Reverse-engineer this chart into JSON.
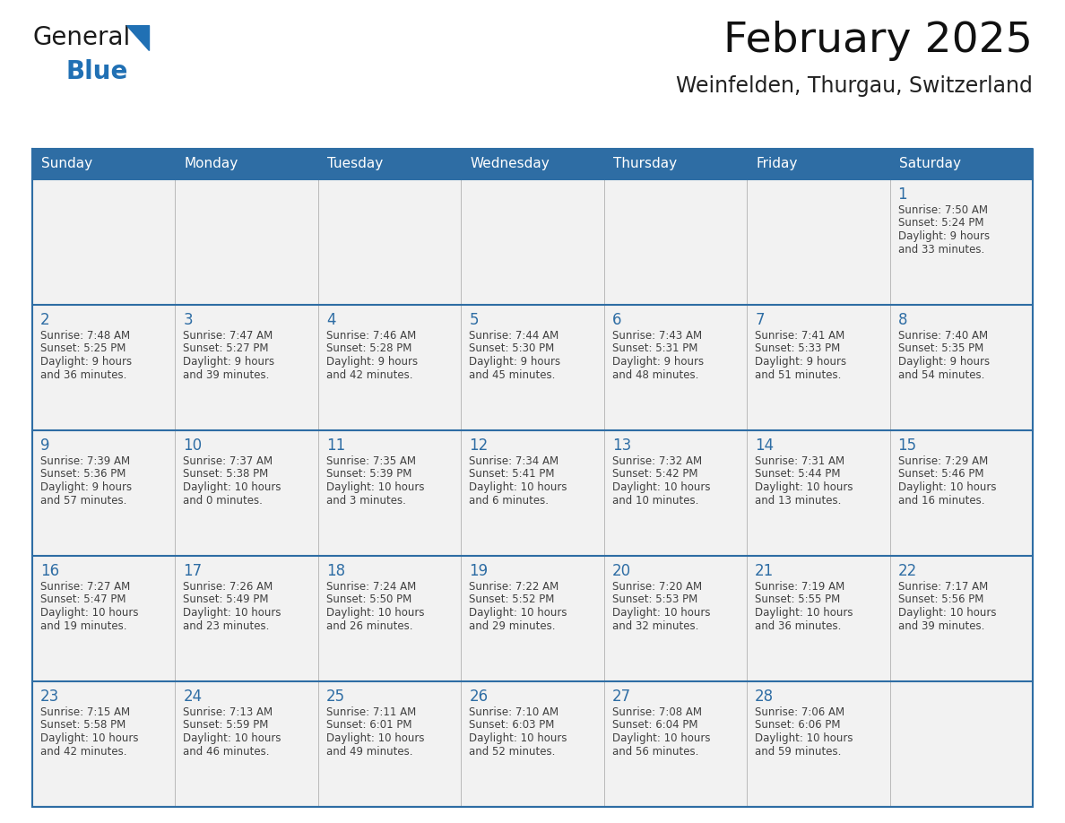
{
  "title": "February 2025",
  "subtitle": "Weinfelden, Thurgau, Switzerland",
  "days_of_week": [
    "Sunday",
    "Monday",
    "Tuesday",
    "Wednesday",
    "Thursday",
    "Friday",
    "Saturday"
  ],
  "header_bg": "#2E6DA4",
  "header_text": "#FFFFFF",
  "cell_bg": "#F2F2F2",
  "day_number_color": "#2E6DA4",
  "text_color": "#404040",
  "line_color": "#2E6DA4",
  "calendar_data": [
    [
      null,
      null,
      null,
      null,
      null,
      null,
      {
        "day": 1,
        "sunrise": "7:50 AM",
        "sunset": "5:24 PM",
        "daylight": "9 hours",
        "daylight2": "and 33 minutes."
      }
    ],
    [
      {
        "day": 2,
        "sunrise": "7:48 AM",
        "sunset": "5:25 PM",
        "daylight": "9 hours",
        "daylight2": "and 36 minutes."
      },
      {
        "day": 3,
        "sunrise": "7:47 AM",
        "sunset": "5:27 PM",
        "daylight": "9 hours",
        "daylight2": "and 39 minutes."
      },
      {
        "day": 4,
        "sunrise": "7:46 AM",
        "sunset": "5:28 PM",
        "daylight": "9 hours",
        "daylight2": "and 42 minutes."
      },
      {
        "day": 5,
        "sunrise": "7:44 AM",
        "sunset": "5:30 PM",
        "daylight": "9 hours",
        "daylight2": "and 45 minutes."
      },
      {
        "day": 6,
        "sunrise": "7:43 AM",
        "sunset": "5:31 PM",
        "daylight": "9 hours",
        "daylight2": "and 48 minutes."
      },
      {
        "day": 7,
        "sunrise": "7:41 AM",
        "sunset": "5:33 PM",
        "daylight": "9 hours",
        "daylight2": "and 51 minutes."
      },
      {
        "day": 8,
        "sunrise": "7:40 AM",
        "sunset": "5:35 PM",
        "daylight": "9 hours",
        "daylight2": "and 54 minutes."
      }
    ],
    [
      {
        "day": 9,
        "sunrise": "7:39 AM",
        "sunset": "5:36 PM",
        "daylight": "9 hours",
        "daylight2": "and 57 minutes."
      },
      {
        "day": 10,
        "sunrise": "7:37 AM",
        "sunset": "5:38 PM",
        "daylight": "10 hours",
        "daylight2": "and 0 minutes."
      },
      {
        "day": 11,
        "sunrise": "7:35 AM",
        "sunset": "5:39 PM",
        "daylight": "10 hours",
        "daylight2": "and 3 minutes."
      },
      {
        "day": 12,
        "sunrise": "7:34 AM",
        "sunset": "5:41 PM",
        "daylight": "10 hours",
        "daylight2": "and 6 minutes."
      },
      {
        "day": 13,
        "sunrise": "7:32 AM",
        "sunset": "5:42 PM",
        "daylight": "10 hours",
        "daylight2": "and 10 minutes."
      },
      {
        "day": 14,
        "sunrise": "7:31 AM",
        "sunset": "5:44 PM",
        "daylight": "10 hours",
        "daylight2": "and 13 minutes."
      },
      {
        "day": 15,
        "sunrise": "7:29 AM",
        "sunset": "5:46 PM",
        "daylight": "10 hours",
        "daylight2": "and 16 minutes."
      }
    ],
    [
      {
        "day": 16,
        "sunrise": "7:27 AM",
        "sunset": "5:47 PM",
        "daylight": "10 hours",
        "daylight2": "and 19 minutes."
      },
      {
        "day": 17,
        "sunrise": "7:26 AM",
        "sunset": "5:49 PM",
        "daylight": "10 hours",
        "daylight2": "and 23 minutes."
      },
      {
        "day": 18,
        "sunrise": "7:24 AM",
        "sunset": "5:50 PM",
        "daylight": "10 hours",
        "daylight2": "and 26 minutes."
      },
      {
        "day": 19,
        "sunrise": "7:22 AM",
        "sunset": "5:52 PM",
        "daylight": "10 hours",
        "daylight2": "and 29 minutes."
      },
      {
        "day": 20,
        "sunrise": "7:20 AM",
        "sunset": "5:53 PM",
        "daylight": "10 hours",
        "daylight2": "and 32 minutes."
      },
      {
        "day": 21,
        "sunrise": "7:19 AM",
        "sunset": "5:55 PM",
        "daylight": "10 hours",
        "daylight2": "and 36 minutes."
      },
      {
        "day": 22,
        "sunrise": "7:17 AM",
        "sunset": "5:56 PM",
        "daylight": "10 hours",
        "daylight2": "and 39 minutes."
      }
    ],
    [
      {
        "day": 23,
        "sunrise": "7:15 AM",
        "sunset": "5:58 PM",
        "daylight": "10 hours",
        "daylight2": "and 42 minutes."
      },
      {
        "day": 24,
        "sunrise": "7:13 AM",
        "sunset": "5:59 PM",
        "daylight": "10 hours",
        "daylight2": "and 46 minutes."
      },
      {
        "day": 25,
        "sunrise": "7:11 AM",
        "sunset": "6:01 PM",
        "daylight": "10 hours",
        "daylight2": "and 49 minutes."
      },
      {
        "day": 26,
        "sunrise": "7:10 AM",
        "sunset": "6:03 PM",
        "daylight": "10 hours",
        "daylight2": "and 52 minutes."
      },
      {
        "day": 27,
        "sunrise": "7:08 AM",
        "sunset": "6:04 PM",
        "daylight": "10 hours",
        "daylight2": "and 56 minutes."
      },
      {
        "day": 28,
        "sunrise": "7:06 AM",
        "sunset": "6:06 PM",
        "daylight": "10 hours",
        "daylight2": "and 59 minutes."
      },
      null
    ]
  ],
  "logo_color_general": "#1a1a1a",
  "logo_color_blue": "#2070B4",
  "logo_triangle_color": "#2070B4",
  "figw": 11.88,
  "figh": 9.18,
  "dpi": 100
}
